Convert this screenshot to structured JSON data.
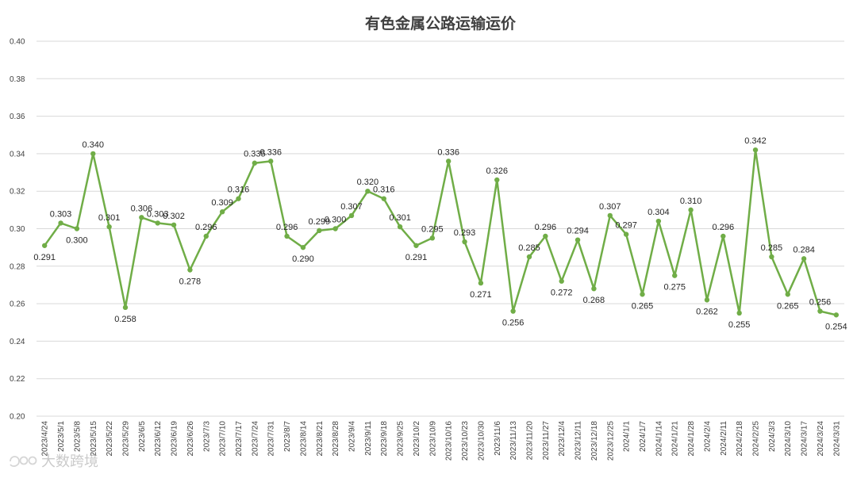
{
  "chart_data": {
    "type": "line",
    "title": "有色金属公路运输运价",
    "xlabel": "",
    "ylabel": "",
    "ylim": [
      0.2,
      0.4
    ],
    "yticks": [
      "0.20",
      "0.22",
      "0.24",
      "0.26",
      "0.28",
      "0.30",
      "0.32",
      "0.34",
      "0.36",
      "0.38",
      "0.40"
    ],
    "grid": true,
    "legend": "none",
    "line_color": "#70ad47",
    "categories": [
      "2023/4/24",
      "2023/5/1",
      "2023/5/8",
      "2023/5/15",
      "2023/5/22",
      "2023/5/29",
      "2023/6/5",
      "2023/6/12",
      "2023/6/19",
      "2023/6/26",
      "2023/7/3",
      "2023/7/10",
      "2023/7/17",
      "2023/7/24",
      "2023/7/31",
      "2023/8/7",
      "2023/8/14",
      "2023/8/21",
      "2023/8/28",
      "2023/9/4",
      "2023/9/11",
      "2023/9/18",
      "2023/9/25",
      "2023/10/2",
      "2023/10/9",
      "2023/10/16",
      "2023/10/23",
      "2023/10/30",
      "2023/11/6",
      "2023/11/13",
      "2023/11/20",
      "2023/11/27",
      "2023/12/4",
      "2023/12/11",
      "2023/12/18",
      "2023/12/25",
      "2024/1/1",
      "2024/1/7",
      "2024/1/14",
      "2024/1/21",
      "2024/1/28",
      "2024/2/4",
      "2024/2/11",
      "2024/2/18",
      "2024/2/25",
      "2024/3/3",
      "2024/3/10",
      "2024/3/17",
      "2024/3/24",
      "2024/3/31"
    ],
    "values": [
      0.291,
      0.303,
      0.3,
      0.34,
      0.301,
      0.258,
      0.306,
      0.303,
      0.302,
      0.278,
      0.296,
      0.309,
      0.316,
      0.335,
      0.336,
      0.296,
      0.29,
      0.299,
      0.3,
      0.307,
      0.32,
      0.316,
      0.301,
      0.291,
      0.295,
      0.336,
      0.293,
      0.271,
      0.326,
      0.256,
      0.285,
      0.296,
      0.272,
      0.294,
      0.268,
      0.307,
      0.297,
      0.265,
      0.304,
      0.275,
      0.31,
      0.262,
      0.296,
      0.255,
      0.342,
      0.285,
      0.265,
      0.284,
      0.256,
      0.254
    ],
    "data_labels": [
      "0.291",
      "0.303",
      "0.300",
      "0.340",
      "0.301",
      "0.258",
      "0.306",
      "0.303",
      "0.302",
      "0.278",
      "0.296",
      "0.309",
      "0.316",
      "0.335",
      "0.336",
      "0.296",
      "0.290",
      "0.299",
      "0.300",
      "0.307",
      "0.320",
      "0.316",
      "0.301",
      "0.291",
      "0.295",
      "0.336",
      "0.293",
      "0.271",
      "0.326",
      "0.256",
      "0.285",
      "0.296",
      "0.272",
      "0.294",
      "0.268",
      "0.307",
      "0.297",
      "0.265",
      "0.304",
      "0.275",
      "0.310",
      "0.262",
      "0.296",
      "0.255",
      "0.342",
      "0.285",
      "0.265",
      "0.284",
      "0.256",
      "0.254"
    ]
  },
  "watermark": {
    "text": "大数跨境"
  }
}
